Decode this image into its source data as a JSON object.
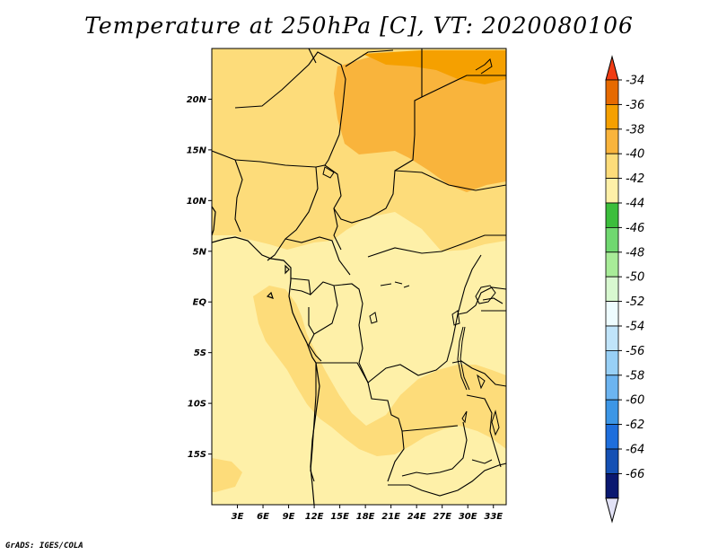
{
  "title": "Temperature at 250hPa [C], VT: 2020080106",
  "credit": "GrADS: IGES/COLA",
  "map": {
    "lon_range": [
      0,
      34.5
    ],
    "lat_range": [
      -20,
      25
    ],
    "lat_ticks": [
      {
        "value": 20,
        "label": "20N"
      },
      {
        "value": 15,
        "label": "15N"
      },
      {
        "value": 10,
        "label": "10N"
      },
      {
        "value": 5,
        "label": "5N"
      },
      {
        "value": 0,
        "label": "EQ"
      },
      {
        "value": -5,
        "label": "5S"
      },
      {
        "value": -10,
        "label": "10S"
      },
      {
        "value": -15,
        "label": "15S"
      }
    ],
    "lon_ticks": [
      {
        "value": 3,
        "label": "3E"
      },
      {
        "value": 6,
        "label": "6E"
      },
      {
        "value": 9,
        "label": "9E"
      },
      {
        "value": 12,
        "label": "12E"
      },
      {
        "value": 15,
        "label": "15E"
      },
      {
        "value": 18,
        "label": "18E"
      },
      {
        "value": 21,
        "label": "21E"
      },
      {
        "value": 24,
        "label": "24E"
      },
      {
        "value": 27,
        "label": "27E"
      },
      {
        "value": 30,
        "label": "30E"
      },
      {
        "value": 33,
        "label": "33E"
      }
    ]
  },
  "colorbar": {
    "levels": [
      {
        "label": "-34",
        "color": "#e66a00"
      },
      {
        "label": "-36",
        "color": "#f5a000"
      },
      {
        "label": "-38",
        "color": "#f9b43c"
      },
      {
        "label": "-40",
        "color": "#fddc7a"
      },
      {
        "label": "-42",
        "color": "#fef0a8"
      },
      {
        "label": "-44",
        "color": "#3cbe3c"
      },
      {
        "label": "-46",
        "color": "#70d870"
      },
      {
        "label": "-48",
        "color": "#a8ec98"
      },
      {
        "label": "-50",
        "color": "#d8f8d0"
      },
      {
        "label": "-52",
        "color": "#eefcff"
      },
      {
        "label": "-54",
        "color": "#c0e4fa"
      },
      {
        "label": "-56",
        "color": "#98d0f6"
      },
      {
        "label": "-58",
        "color": "#6cb4f0"
      },
      {
        "label": "-60",
        "color": "#3c96e6"
      },
      {
        "label": "-62",
        "color": "#1e6edc"
      },
      {
        "label": "-64",
        "color": "#1450b4"
      },
      {
        "label": "-66",
        "color": "#0a1870"
      }
    ],
    "top_color": "#f03c14",
    "bottom_color": "#e2e2f6"
  }
}
